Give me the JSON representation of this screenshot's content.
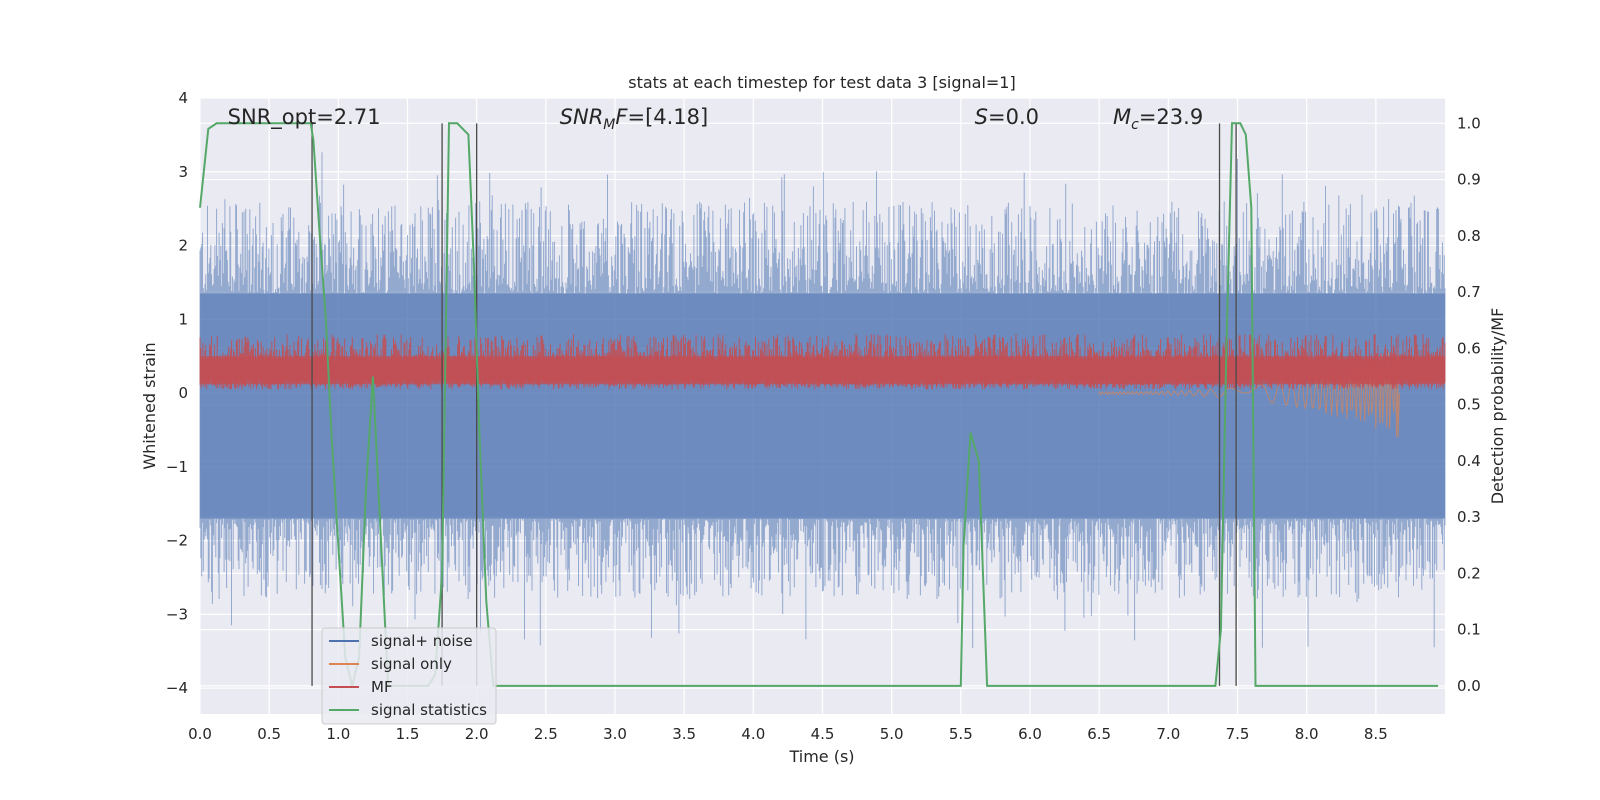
{
  "chart_data": {
    "type": "line",
    "title": "stats at each timestep for test data 3 [signal=1]",
    "xlabel": "Time (s)",
    "ylabel": "Whitened strain",
    "y2label": "Detection probability/MF",
    "xlim": [
      0,
      9
    ],
    "ylim": [
      -4.35,
      4
    ],
    "y2lim": [
      -0.05,
      1.045
    ],
    "x_ticks": [
      0,
      0.5,
      1,
      1.5,
      2,
      2.5,
      3,
      3.5,
      4,
      4.5,
      5,
      5.5,
      6,
      6.5,
      7,
      7.5,
      8,
      8.5
    ],
    "x_tick_labels": [
      "0.0",
      "0.5",
      "1.0",
      "1.5",
      "2.0",
      "2.5",
      "3.0",
      "3.5",
      "4.0",
      "4.5",
      "5.0",
      "5.5",
      "6.0",
      "6.5",
      "7.0",
      "7.5",
      "8.0",
      "8.5"
    ],
    "y_ticks": [
      -4,
      -3,
      -2,
      -1,
      0,
      1,
      2,
      3,
      4
    ],
    "y_tick_labels": [
      "−4",
      "−3",
      "−2",
      "−1",
      "0",
      "1",
      "2",
      "3",
      "4"
    ],
    "y2_ticks": [
      0,
      0.1,
      0.2,
      0.3,
      0.4,
      0.5,
      0.6,
      0.7,
      0.8,
      0.9,
      1.0
    ],
    "y2_tick_labels": [
      "0.0",
      "0.1",
      "0.2",
      "0.3",
      "0.4",
      "0.5",
      "0.6",
      "0.7",
      "0.8",
      "0.9",
      "1.0"
    ],
    "grid": true,
    "legend_position": "lower-left",
    "series": [
      {
        "name": "signal+ noise",
        "color": "#4c72b0",
        "axis": "left",
        "style": "noise band",
        "approx_range": [
          -3.5,
          3.3
        ]
      },
      {
        "name": "signal only",
        "color": "#dd8452",
        "axis": "left",
        "style": "chirp near 8.0-8.7 s",
        "approx_peak": -0.6
      },
      {
        "name": "MF",
        "color": "#c44e52",
        "axis": "left",
        "style": "band",
        "approx_range": [
          0.05,
          0.8
        ]
      },
      {
        "name": "signal statistics",
        "color": "#55a868",
        "axis": "right",
        "x": [
          0,
          0.06,
          0.12,
          0.8,
          0.82,
          0.86,
          0.91,
          0.95,
          1.0,
          1.05,
          1.1,
          1.15,
          1.2,
          1.25,
          1.3,
          1.36,
          1.4,
          1.45,
          1.5,
          1.55,
          1.6,
          1.65,
          1.7,
          1.75,
          1.8,
          1.86,
          1.9,
          1.94,
          1.98,
          2.02,
          2.07,
          2.12,
          2.15,
          2.5,
          3.0,
          3.5,
          4.0,
          4.5,
          5.0,
          5.5,
          5.52,
          5.57,
          5.63,
          5.69,
          6.0,
          6.5,
          7.0,
          7.34,
          7.38,
          7.42,
          7.46,
          7.48,
          7.52,
          7.56,
          7.6,
          7.63,
          8.0,
          8.5,
          8.95
        ],
        "y": [
          0.85,
          0.99,
          1.0,
          1.0,
          0.97,
          0.82,
          0.65,
          0.45,
          0.25,
          0.05,
          0.0,
          0.05,
          0.35,
          0.55,
          0.3,
          0.0,
          0.0,
          0.0,
          0.0,
          0.0,
          0.0,
          0.0,
          0.02,
          0.2,
          1.0,
          1.0,
          0.99,
          0.98,
          0.75,
          0.45,
          0.15,
          0.0,
          0.0,
          0.0,
          0.0,
          0.0,
          0.0,
          0.0,
          0.0,
          0.0,
          0.25,
          0.45,
          0.4,
          0.0,
          0.0,
          0.0,
          0.0,
          0.0,
          0.1,
          0.6,
          1.0,
          1.0,
          1.0,
          0.98,
          0.85,
          0.0,
          0.0,
          0.0,
          0.0
        ]
      }
    ],
    "vertical_lines": [
      0.81,
      1.75,
      2.0,
      7.37,
      7.49
    ],
    "annotations": [
      {
        "text": "SNR_opt=2.71",
        "x": 0.2
      },
      {
        "text": "SNR",
        "sub": "M",
        "rest": "F=[4.18]",
        "x": 2.6
      },
      {
        "text": "S",
        "rest": "=0.0",
        "x": 5.6
      },
      {
        "text": "M",
        "sub": "c",
        "rest": "=23.9",
        "x": 6.6
      }
    ]
  }
}
